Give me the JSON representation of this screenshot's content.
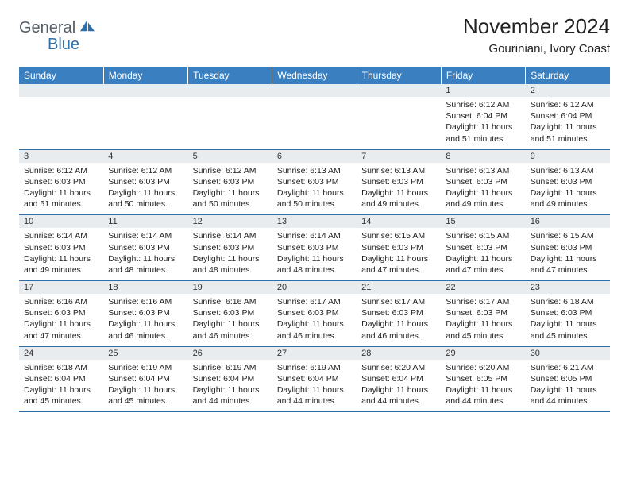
{
  "brand": {
    "word1": "General",
    "word2": "Blue",
    "word1_color": "#555d66",
    "word2_color": "#2f6fa7"
  },
  "title": "November 2024",
  "location": "Gouriniani, Ivory Coast",
  "colors": {
    "header_bg": "#3a7fc0",
    "header_fg": "#ffffff",
    "daynum_bg": "#e9ecef",
    "rule": "#2f6fa7",
    "text": "#222222"
  },
  "day_headers": [
    "Sunday",
    "Monday",
    "Tuesday",
    "Wednesday",
    "Thursday",
    "Friday",
    "Saturday"
  ],
  "weeks": [
    [
      {
        "n": "",
        "sunrise": "",
        "sunset": "",
        "daylight": ""
      },
      {
        "n": "",
        "sunrise": "",
        "sunset": "",
        "daylight": ""
      },
      {
        "n": "",
        "sunrise": "",
        "sunset": "",
        "daylight": ""
      },
      {
        "n": "",
        "sunrise": "",
        "sunset": "",
        "daylight": ""
      },
      {
        "n": "",
        "sunrise": "",
        "sunset": "",
        "daylight": ""
      },
      {
        "n": "1",
        "sunrise": "Sunrise: 6:12 AM",
        "sunset": "Sunset: 6:04 PM",
        "daylight": "Daylight: 11 hours and 51 minutes."
      },
      {
        "n": "2",
        "sunrise": "Sunrise: 6:12 AM",
        "sunset": "Sunset: 6:04 PM",
        "daylight": "Daylight: 11 hours and 51 minutes."
      }
    ],
    [
      {
        "n": "3",
        "sunrise": "Sunrise: 6:12 AM",
        "sunset": "Sunset: 6:03 PM",
        "daylight": "Daylight: 11 hours and 51 minutes."
      },
      {
        "n": "4",
        "sunrise": "Sunrise: 6:12 AM",
        "sunset": "Sunset: 6:03 PM",
        "daylight": "Daylight: 11 hours and 50 minutes."
      },
      {
        "n": "5",
        "sunrise": "Sunrise: 6:12 AM",
        "sunset": "Sunset: 6:03 PM",
        "daylight": "Daylight: 11 hours and 50 minutes."
      },
      {
        "n": "6",
        "sunrise": "Sunrise: 6:13 AM",
        "sunset": "Sunset: 6:03 PM",
        "daylight": "Daylight: 11 hours and 50 minutes."
      },
      {
        "n": "7",
        "sunrise": "Sunrise: 6:13 AM",
        "sunset": "Sunset: 6:03 PM",
        "daylight": "Daylight: 11 hours and 49 minutes."
      },
      {
        "n": "8",
        "sunrise": "Sunrise: 6:13 AM",
        "sunset": "Sunset: 6:03 PM",
        "daylight": "Daylight: 11 hours and 49 minutes."
      },
      {
        "n": "9",
        "sunrise": "Sunrise: 6:13 AM",
        "sunset": "Sunset: 6:03 PM",
        "daylight": "Daylight: 11 hours and 49 minutes."
      }
    ],
    [
      {
        "n": "10",
        "sunrise": "Sunrise: 6:14 AM",
        "sunset": "Sunset: 6:03 PM",
        "daylight": "Daylight: 11 hours and 49 minutes."
      },
      {
        "n": "11",
        "sunrise": "Sunrise: 6:14 AM",
        "sunset": "Sunset: 6:03 PM",
        "daylight": "Daylight: 11 hours and 48 minutes."
      },
      {
        "n": "12",
        "sunrise": "Sunrise: 6:14 AM",
        "sunset": "Sunset: 6:03 PM",
        "daylight": "Daylight: 11 hours and 48 minutes."
      },
      {
        "n": "13",
        "sunrise": "Sunrise: 6:14 AM",
        "sunset": "Sunset: 6:03 PM",
        "daylight": "Daylight: 11 hours and 48 minutes."
      },
      {
        "n": "14",
        "sunrise": "Sunrise: 6:15 AM",
        "sunset": "Sunset: 6:03 PM",
        "daylight": "Daylight: 11 hours and 47 minutes."
      },
      {
        "n": "15",
        "sunrise": "Sunrise: 6:15 AM",
        "sunset": "Sunset: 6:03 PM",
        "daylight": "Daylight: 11 hours and 47 minutes."
      },
      {
        "n": "16",
        "sunrise": "Sunrise: 6:15 AM",
        "sunset": "Sunset: 6:03 PM",
        "daylight": "Daylight: 11 hours and 47 minutes."
      }
    ],
    [
      {
        "n": "17",
        "sunrise": "Sunrise: 6:16 AM",
        "sunset": "Sunset: 6:03 PM",
        "daylight": "Daylight: 11 hours and 47 minutes."
      },
      {
        "n": "18",
        "sunrise": "Sunrise: 6:16 AM",
        "sunset": "Sunset: 6:03 PM",
        "daylight": "Daylight: 11 hours and 46 minutes."
      },
      {
        "n": "19",
        "sunrise": "Sunrise: 6:16 AM",
        "sunset": "Sunset: 6:03 PM",
        "daylight": "Daylight: 11 hours and 46 minutes."
      },
      {
        "n": "20",
        "sunrise": "Sunrise: 6:17 AM",
        "sunset": "Sunset: 6:03 PM",
        "daylight": "Daylight: 11 hours and 46 minutes."
      },
      {
        "n": "21",
        "sunrise": "Sunrise: 6:17 AM",
        "sunset": "Sunset: 6:03 PM",
        "daylight": "Daylight: 11 hours and 46 minutes."
      },
      {
        "n": "22",
        "sunrise": "Sunrise: 6:17 AM",
        "sunset": "Sunset: 6:03 PM",
        "daylight": "Daylight: 11 hours and 45 minutes."
      },
      {
        "n": "23",
        "sunrise": "Sunrise: 6:18 AM",
        "sunset": "Sunset: 6:03 PM",
        "daylight": "Daylight: 11 hours and 45 minutes."
      }
    ],
    [
      {
        "n": "24",
        "sunrise": "Sunrise: 6:18 AM",
        "sunset": "Sunset: 6:04 PM",
        "daylight": "Daylight: 11 hours and 45 minutes."
      },
      {
        "n": "25",
        "sunrise": "Sunrise: 6:19 AM",
        "sunset": "Sunset: 6:04 PM",
        "daylight": "Daylight: 11 hours and 45 minutes."
      },
      {
        "n": "26",
        "sunrise": "Sunrise: 6:19 AM",
        "sunset": "Sunset: 6:04 PM",
        "daylight": "Daylight: 11 hours and 44 minutes."
      },
      {
        "n": "27",
        "sunrise": "Sunrise: 6:19 AM",
        "sunset": "Sunset: 6:04 PM",
        "daylight": "Daylight: 11 hours and 44 minutes."
      },
      {
        "n": "28",
        "sunrise": "Sunrise: 6:20 AM",
        "sunset": "Sunset: 6:04 PM",
        "daylight": "Daylight: 11 hours and 44 minutes."
      },
      {
        "n": "29",
        "sunrise": "Sunrise: 6:20 AM",
        "sunset": "Sunset: 6:05 PM",
        "daylight": "Daylight: 11 hours and 44 minutes."
      },
      {
        "n": "30",
        "sunrise": "Sunrise: 6:21 AM",
        "sunset": "Sunset: 6:05 PM",
        "daylight": "Daylight: 11 hours and 44 minutes."
      }
    ]
  ]
}
